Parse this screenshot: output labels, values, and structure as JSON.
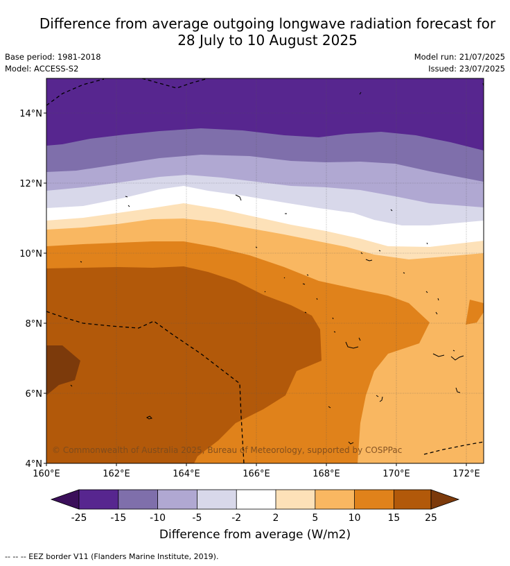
{
  "title": {
    "line1": "Difference from average outgoing longwave radiation forecast for",
    "line2": "28 July to 10 August 2025"
  },
  "meta": {
    "base_period": "Base period: 1981-2018",
    "model": "Model: ACCESS-S2",
    "model_run": "Model run: 21/07/2025",
    "issued": "Issued: 23/07/2025"
  },
  "map": {
    "lat_ticks": [
      "14°N",
      "12°N",
      "10°N",
      "8°N",
      "6°N",
      "4°N"
    ],
    "lon_ticks": [
      "160°E",
      "162°E",
      "164°E",
      "166°E",
      "168°E",
      "170°E",
      "172°E"
    ],
    "copyright": "© Commonwealth of Australia 2025, Bureau of Meteorology, supported by COSPPac"
  },
  "legend": {
    "tick_labels": [
      "-25",
      "-15",
      "-10",
      "-5",
      "-2",
      "2",
      "5",
      "10",
      "15",
      "25"
    ],
    "colors": [
      "#3b0f5a",
      "#57268f",
      "#7f6fab",
      "#b0a8d2",
      "#d8d8ea",
      "#ffffff",
      "#fde1b8",
      "#f9b761",
      "#e0821b",
      "#b2590a",
      "#7c3a0b"
    ],
    "label": "Difference from average (W/m2)"
  },
  "footer": {
    "eez_note": "--  --  -- EEZ border V11 (Flanders Marine Institute, 2019)."
  }
}
